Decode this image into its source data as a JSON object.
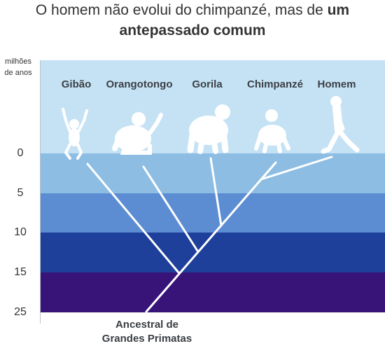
{
  "title": {
    "line1_normal": "O homem não evolui do chimpanzé, mas de ",
    "line1_bold": "um",
    "line2_bold": "antepassado comum"
  },
  "axis": {
    "unit_line1": "milhões",
    "unit_line2": "de anos",
    "ticks": [
      "0",
      "5",
      "10",
      "15",
      "25"
    ]
  },
  "species": {
    "gibbon": "Gibão",
    "orangutan": "Orangotongo",
    "gorilla": "Gorila",
    "chimpanzee": "Chimpanzé",
    "human": "Homem"
  },
  "ancestor": {
    "line1": "Ancestral de",
    "line2": "Grandes Primatas"
  },
  "colors": {
    "band_top": "#c5e2f5",
    "band_0_5": "#8dbde2",
    "band_5_10": "#5c8dd2",
    "band_10_15": "#1e3f9a",
    "band_15_25": "#381478",
    "silhouette": "#ffffff",
    "tree": "#ffffff"
  },
  "icons": [
    "gibbon-silhouette",
    "orangutan-silhouette",
    "gorilla-silhouette",
    "chimpanzee-silhouette",
    "human-silhouette"
  ]
}
